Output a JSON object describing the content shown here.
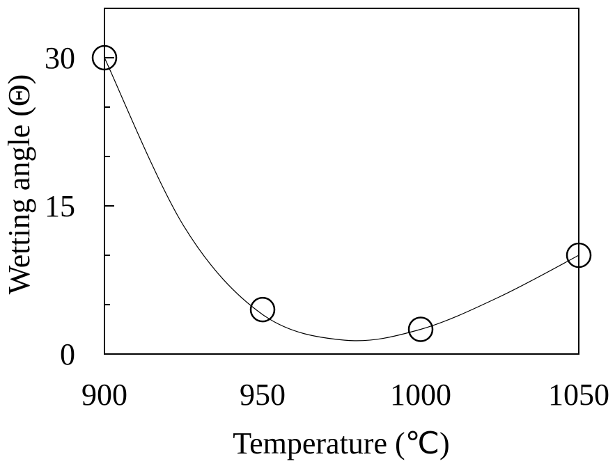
{
  "chart_data": {
    "type": "scatter",
    "title": "",
    "xlabel": "Temperature (℃)",
    "ylabel": "Wetting angle (Θ)",
    "xlim": [
      900,
      1050
    ],
    "ylim": [
      0,
      35
    ],
    "x_ticks": [
      900,
      950,
      1000,
      1050
    ],
    "y_ticks": [
      0,
      15,
      30
    ],
    "grid": false,
    "legend": "none",
    "series": [
      {
        "points": [
          {
            "x": 900,
            "y": 30
          },
          {
            "x": 950,
            "y": 4.5
          },
          {
            "x": 1000,
            "y": 2.5
          },
          {
            "x": 1050,
            "y": 10
          }
        ],
        "marker": "open-circle",
        "fit_curve": [
          {
            "x": 900,
            "y": 30
          },
          {
            "x": 925,
            "y": 13
          },
          {
            "x": 950,
            "y": 4
          },
          {
            "x": 976,
            "y": 1.4
          },
          {
            "x": 1000,
            "y": 2.5
          },
          {
            "x": 1025,
            "y": 5.8
          },
          {
            "x": 1050,
            "y": 10
          }
        ]
      }
    ]
  }
}
